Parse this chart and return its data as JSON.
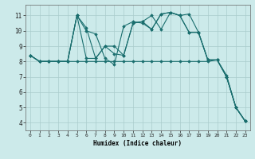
{
  "xlabel": "Humidex (Indice chaleur)",
  "background_color": "#cceaea",
  "grid_color": "#aacccc",
  "line_color": "#1a6e6e",
  "xlim": [
    -0.5,
    23.5
  ],
  "ylim": [
    3.5,
    11.7
  ],
  "xticks": [
    0,
    1,
    2,
    3,
    4,
    5,
    6,
    7,
    8,
    9,
    10,
    11,
    12,
    13,
    14,
    15,
    16,
    17,
    18,
    19,
    20,
    21,
    22,
    23
  ],
  "yticks": [
    4,
    5,
    6,
    7,
    8,
    9,
    10,
    11
  ],
  "series": [
    [
      8.4,
      8.0,
      8.0,
      8.0,
      8.0,
      8.0,
      8.0,
      8.0,
      8.0,
      8.0,
      8.0,
      8.0,
      8.0,
      8.0,
      8.0,
      8.0,
      8.0,
      8.0,
      8.0,
      8.0,
      8.1,
      7.0,
      5.0,
      4.1
    ],
    [
      8.4,
      8.0,
      8.0,
      8.0,
      8.0,
      11.0,
      10.0,
      9.8,
      8.2,
      7.8,
      10.3,
      10.6,
      10.5,
      10.1,
      11.1,
      11.2,
      11.0,
      11.1,
      9.9,
      8.1,
      8.1,
      7.1,
      5.0,
      4.1
    ],
    [
      8.4,
      8.0,
      8.0,
      8.0,
      8.0,
      11.0,
      10.2,
      8.2,
      9.0,
      8.5,
      8.4,
      10.5,
      10.6,
      10.1,
      11.1,
      11.2,
      11.0,
      9.9,
      9.9,
      8.1,
      8.1,
      7.0,
      5.0,
      4.1
    ],
    [
      8.4,
      8.0,
      8.0,
      8.0,
      8.0,
      11.0,
      8.2,
      8.2,
      9.0,
      9.0,
      8.4,
      10.5,
      10.6,
      11.0,
      10.1,
      11.2,
      11.0,
      9.9,
      9.9,
      8.1,
      8.1,
      7.0,
      5.0,
      4.1
    ]
  ]
}
